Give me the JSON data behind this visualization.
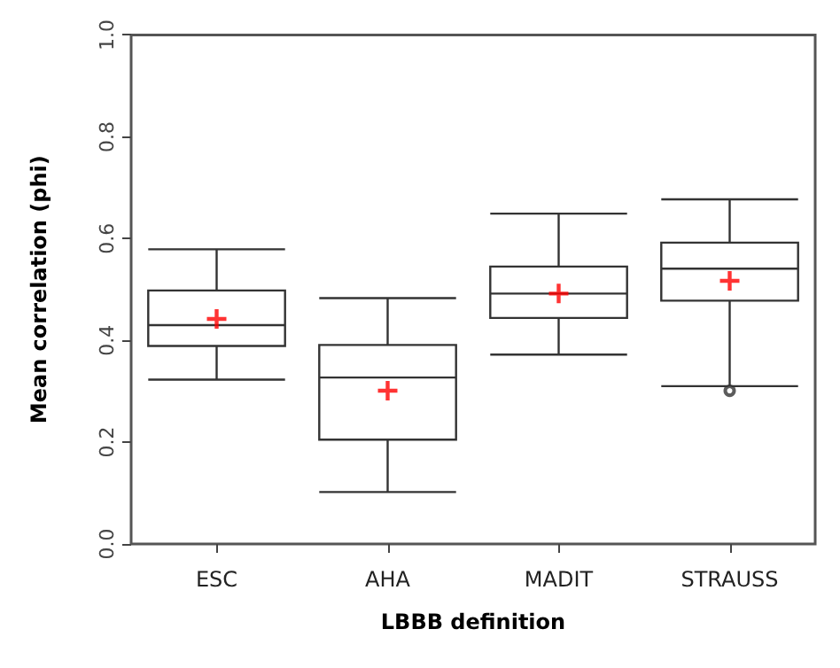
{
  "chart_data": {
    "type": "box",
    "xlabel": "LBBB definition",
    "ylabel": "Mean correlation (phi)",
    "categories": [
      "ESC",
      "AHA",
      "MADIT",
      "STRAUSS"
    ],
    "boxes": [
      {
        "low": 0.323,
        "q1": 0.389,
        "median": 0.43,
        "q3": 0.498,
        "high": 0.579,
        "mean": 0.442
      },
      {
        "low": 0.102,
        "q1": 0.205,
        "median": 0.327,
        "q3": 0.391,
        "high": 0.483,
        "mean": 0.301
      },
      {
        "low": 0.372,
        "q1": 0.444,
        "median": 0.492,
        "q3": 0.545,
        "high": 0.649,
        "mean": 0.492
      },
      {
        "low": 0.31,
        "q1": 0.478,
        "median": 0.541,
        "q3": 0.592,
        "high": 0.677,
        "mean": 0.517,
        "outliers": [
          0.301
        ]
      }
    ],
    "color": "#333333",
    "ylim": [
      0,
      1
    ],
    "yticks": [
      "0.0",
      0.2,
      0.4,
      0.6,
      0.8,
      "1.0"
    ],
    "grid": false
  }
}
